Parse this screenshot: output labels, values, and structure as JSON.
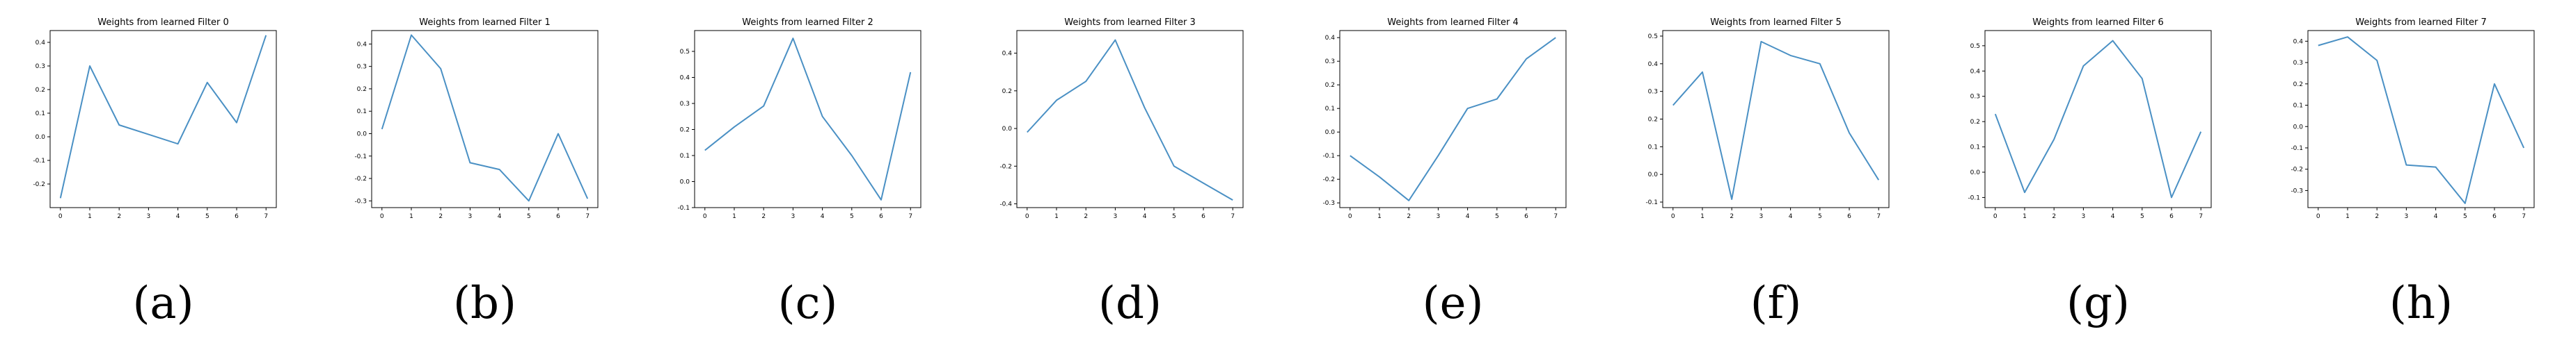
{
  "line_color": "#4a90c4",
  "chart_data": [
    {
      "type": "line",
      "title": "Weights from learned Filter 0",
      "caption": "(a)",
      "x": [
        0,
        1,
        2,
        3,
        4,
        5,
        6,
        7
      ],
      "series": [
        {
          "values": [
            -0.26,
            0.3,
            0.05,
            0.01,
            -0.03,
            0.23,
            0.06,
            0.43
          ]
        }
      ],
      "ylim": [
        -0.3,
        0.45
      ],
      "yticks": [
        -0.2,
        -0.1,
        0.0,
        0.1,
        0.2,
        0.3,
        0.4
      ],
      "ytick_labels": [
        "-0.2",
        "-0.1",
        "0.0",
        "0.1",
        "0.2",
        "0.3",
        "0.4"
      ],
      "xtick_labels": [
        "0",
        "1",
        "2",
        "3",
        "4",
        "5",
        "6",
        "7"
      ]
    },
    {
      "type": "line",
      "title": "Weights from learned Filter 1",
      "caption": "(b)",
      "x": [
        0,
        1,
        2,
        3,
        4,
        5,
        6,
        7
      ],
      "series": [
        {
          "values": [
            0.02,
            0.44,
            0.29,
            -0.13,
            -0.16,
            -0.3,
            0.0,
            -0.29
          ]
        }
      ],
      "ylim": [
        -0.33,
        0.46
      ],
      "yticks": [
        -0.3,
        -0.2,
        -0.1,
        0.0,
        0.1,
        0.2,
        0.3,
        0.4
      ],
      "ytick_labels": [
        "-0.3",
        "-0.2",
        "-0.1",
        "0.0",
        "0.1",
        "0.2",
        "0.3",
        "0.4"
      ],
      "xtick_labels": [
        "0",
        "1",
        "2",
        "3",
        "4",
        "5",
        "6",
        "7"
      ]
    },
    {
      "type": "line",
      "title": "Weights from learned Filter 2",
      "caption": "(c)",
      "x": [
        0,
        1,
        2,
        3,
        4,
        5,
        6,
        7
      ],
      "series": [
        {
          "values": [
            0.12,
            0.21,
            0.29,
            0.55,
            0.25,
            0.1,
            -0.07,
            0.42
          ]
        }
      ],
      "ylim": [
        -0.1,
        0.58
      ],
      "yticks": [
        -0.1,
        0.0,
        0.1,
        0.2,
        0.3,
        0.4,
        0.5
      ],
      "ytick_labels": [
        "-0.1",
        "0.0",
        "0.1",
        "0.2",
        "0.3",
        "0.4",
        "0.5"
      ],
      "xtick_labels": [
        "0",
        "1",
        "2",
        "3",
        "4",
        "5",
        "6",
        "7"
      ]
    },
    {
      "type": "line",
      "title": "Weights from learned Filter 3",
      "caption": "(d)",
      "x": [
        0,
        1,
        2,
        3,
        4,
        5,
        6,
        7
      ],
      "series": [
        {
          "values": [
            -0.02,
            0.15,
            0.25,
            0.47,
            0.11,
            -0.2,
            -0.29,
            -0.38
          ]
        }
      ],
      "ylim": [
        -0.42,
        0.52
      ],
      "yticks": [
        -0.4,
        -0.2,
        0.0,
        0.2,
        0.4
      ],
      "ytick_labels": [
        "-0.4",
        "-0.2",
        "0.0",
        "0.2",
        "0.4"
      ],
      "xtick_labels": [
        "0",
        "1",
        "2",
        "3",
        "4",
        "5",
        "6",
        "7"
      ]
    },
    {
      "type": "line",
      "title": "Weights from learned Filter 4",
      "caption": "(e)",
      "x": [
        0,
        1,
        2,
        3,
        4,
        5,
        6,
        7
      ],
      "series": [
        {
          "values": [
            -0.1,
            -0.19,
            -0.29,
            -0.1,
            0.1,
            0.14,
            0.31,
            0.4
          ]
        }
      ],
      "ylim": [
        -0.32,
        0.43
      ],
      "yticks": [
        -0.3,
        -0.2,
        -0.1,
        0.0,
        0.1,
        0.2,
        0.3,
        0.4
      ],
      "ytick_labels": [
        "-0.3",
        "-0.2",
        "-0.1",
        "0.0",
        "0.1",
        "0.2",
        "0.3",
        "0.4"
      ],
      "xtick_labels": [
        "0",
        "1",
        "2",
        "3",
        "4",
        "5",
        "6",
        "7"
      ]
    },
    {
      "type": "line",
      "title": "Weights from learned Filter 5",
      "caption": "(f)",
      "x": [
        0,
        1,
        2,
        3,
        4,
        5,
        6,
        7
      ],
      "series": [
        {
          "values": [
            0.25,
            0.37,
            -0.09,
            0.48,
            0.43,
            0.4,
            0.15,
            -0.02
          ]
        }
      ],
      "ylim": [
        -0.12,
        0.52
      ],
      "yticks": [
        -0.1,
        0.0,
        0.1,
        0.2,
        0.3,
        0.4,
        0.5
      ],
      "ytick_labels": [
        "-0.1",
        "0.0",
        "0.1",
        "0.2",
        "0.3",
        "0.4",
        "0.5"
      ],
      "xtick_labels": [
        "0",
        "1",
        "2",
        "3",
        "4",
        "5",
        "6",
        "7"
      ]
    },
    {
      "type": "line",
      "title": "Weights from learned Filter 6",
      "caption": "(g)",
      "x": [
        0,
        1,
        2,
        3,
        4,
        5,
        6,
        7
      ],
      "series": [
        {
          "values": [
            0.23,
            -0.08,
            0.13,
            0.42,
            0.52,
            0.37,
            -0.1,
            0.16
          ]
        }
      ],
      "ylim": [
        -0.14,
        0.56
      ],
      "yticks": [
        -0.1,
        0.0,
        0.1,
        0.2,
        0.3,
        0.4,
        0.5
      ],
      "ytick_labels": [
        "-0.1",
        "0.0",
        "0.1",
        "0.2",
        "0.3",
        "0.4",
        "0.5"
      ],
      "xtick_labels": [
        "0",
        "1",
        "2",
        "3",
        "4",
        "5",
        "6",
        "7"
      ]
    },
    {
      "type": "line",
      "title": "Weights from learned Filter 7",
      "caption": "(h)",
      "x": [
        0,
        1,
        2,
        3,
        4,
        5,
        6,
        7
      ],
      "series": [
        {
          "values": [
            0.38,
            0.42,
            0.31,
            -0.18,
            -0.19,
            -0.36,
            0.2,
            -0.1
          ]
        }
      ],
      "ylim": [
        -0.38,
        0.45
      ],
      "yticks": [
        -0.3,
        -0.2,
        -0.1,
        0.0,
        0.1,
        0.2,
        0.3,
        0.4
      ],
      "ytick_labels": [
        "-0.3",
        "-0.2",
        "-0.1",
        "0.0",
        "0.1",
        "0.2",
        "0.3",
        "0.4"
      ],
      "xtick_labels": [
        "0",
        "1",
        "2",
        "3",
        "4",
        "5",
        "6",
        "7"
      ]
    }
  ]
}
